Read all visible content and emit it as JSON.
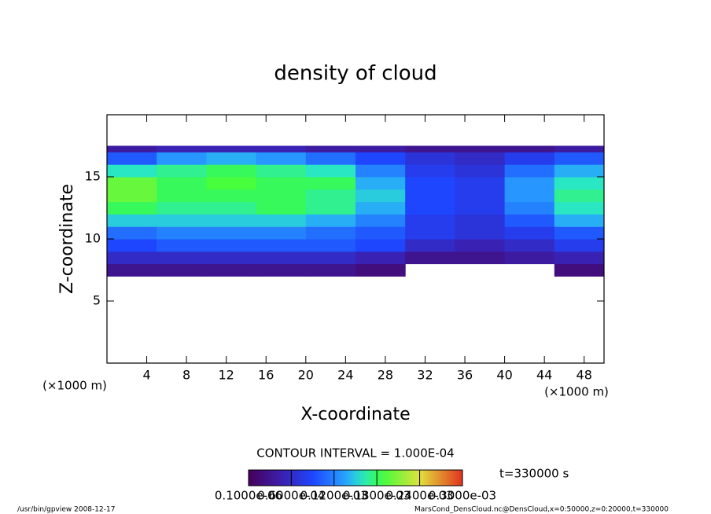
{
  "chart_data": {
    "type": "heatmap",
    "title": "density of cloud",
    "x_label": "X-coordinate",
    "y_label": "Z-coordinate",
    "x_unit": "(×1000 m)",
    "y_unit": "(×1000 m)",
    "xlim": [
      0,
      50
    ],
    "ylim": [
      0,
      20
    ],
    "xticks": [
      4,
      8,
      12,
      16,
      20,
      24,
      28,
      32,
      36,
      40,
      44,
      48
    ],
    "yticks": [
      5,
      10,
      15
    ],
    "x_edges": [
      0,
      5,
      10,
      15,
      20,
      25,
      30,
      35,
      40,
      45,
      50
    ],
    "z_edges": [
      7,
      8,
      9,
      10,
      11,
      12,
      13,
      14,
      15,
      16,
      17,
      17.5
    ],
    "values": [
      [
        3e-05,
        3e-05,
        3e-05,
        3e-05,
        3e-05,
        2e-05,
        null,
        null,
        null,
        2e-05
      ],
      [
        6e-05,
        6e-05,
        6e-05,
        6e-05,
        6e-05,
        5e-05,
        3e-05,
        3e-05,
        4e-05,
        5e-05
      ],
      [
        9e-05,
        0.0001,
        0.0001,
        0.0001,
        0.0001,
        9e-05,
        6e-05,
        5e-05,
        6e-05,
        8e-05
      ],
      [
        0.00011,
        0.00012,
        0.00012,
        0.00012,
        0.00011,
        0.0001,
        8e-05,
        7e-05,
        8e-05,
        0.0001
      ],
      [
        0.00015,
        0.00015,
        0.00015,
        0.00015,
        0.00014,
        0.00012,
        8e-05,
        7e-05,
        0.0001,
        0.00014
      ],
      [
        0.00018,
        0.00017,
        0.00017,
        0.00018,
        0.00017,
        0.00014,
        9e-05,
        8e-05,
        0.00012,
        0.00016
      ],
      [
        0.0002,
        0.00018,
        0.00018,
        0.00018,
        0.00017,
        0.00015,
        9e-05,
        8e-05,
        0.00013,
        0.00017
      ],
      [
        0.0002,
        0.00018,
        0.00019,
        0.00018,
        0.00018,
        0.00014,
        9e-05,
        8e-05,
        0.00013,
        0.00016
      ],
      [
        0.00016,
        0.00017,
        0.00018,
        0.00017,
        0.00016,
        0.00012,
        8e-05,
        7e-05,
        0.00011,
        0.00014
      ],
      [
        0.0001,
        0.00013,
        0.00014,
        0.00013,
        0.00011,
        9e-05,
        7e-05,
        6e-05,
        8e-05,
        0.0001
      ],
      [
        4e-05,
        5e-05,
        5e-05,
        5e-05,
        4e-05,
        4e-05,
        3e-05,
        3e-05,
        3e-05,
        4e-05
      ]
    ],
    "contour_interval": "CONTOUR INTERVAL = 1.000E-04",
    "time": "t=330000 s",
    "colorbar_lim": [
      1e-07,
      0.0003
    ],
    "colorbar_ticks": [
      {
        "value": 1e-07,
        "label": "0.1000e-06"
      },
      {
        "value": 6e-05,
        "label": "0.6000e-04"
      },
      {
        "value": 0.00012,
        "label": "0.1200e-03"
      },
      {
        "value": 0.00018,
        "label": "0.1800e-03"
      },
      {
        "value": 0.00024,
        "label": "0.2400e-03"
      },
      {
        "value": 0.0003,
        "label": "0.3000e-03"
      }
    ],
    "footer_left": "/usr/bin/gpview   2008-12-17",
    "footer_right": "MarsCond_DensCloud.nc@DensCloud,x=0:50000,z=0:20000,t=330000"
  }
}
